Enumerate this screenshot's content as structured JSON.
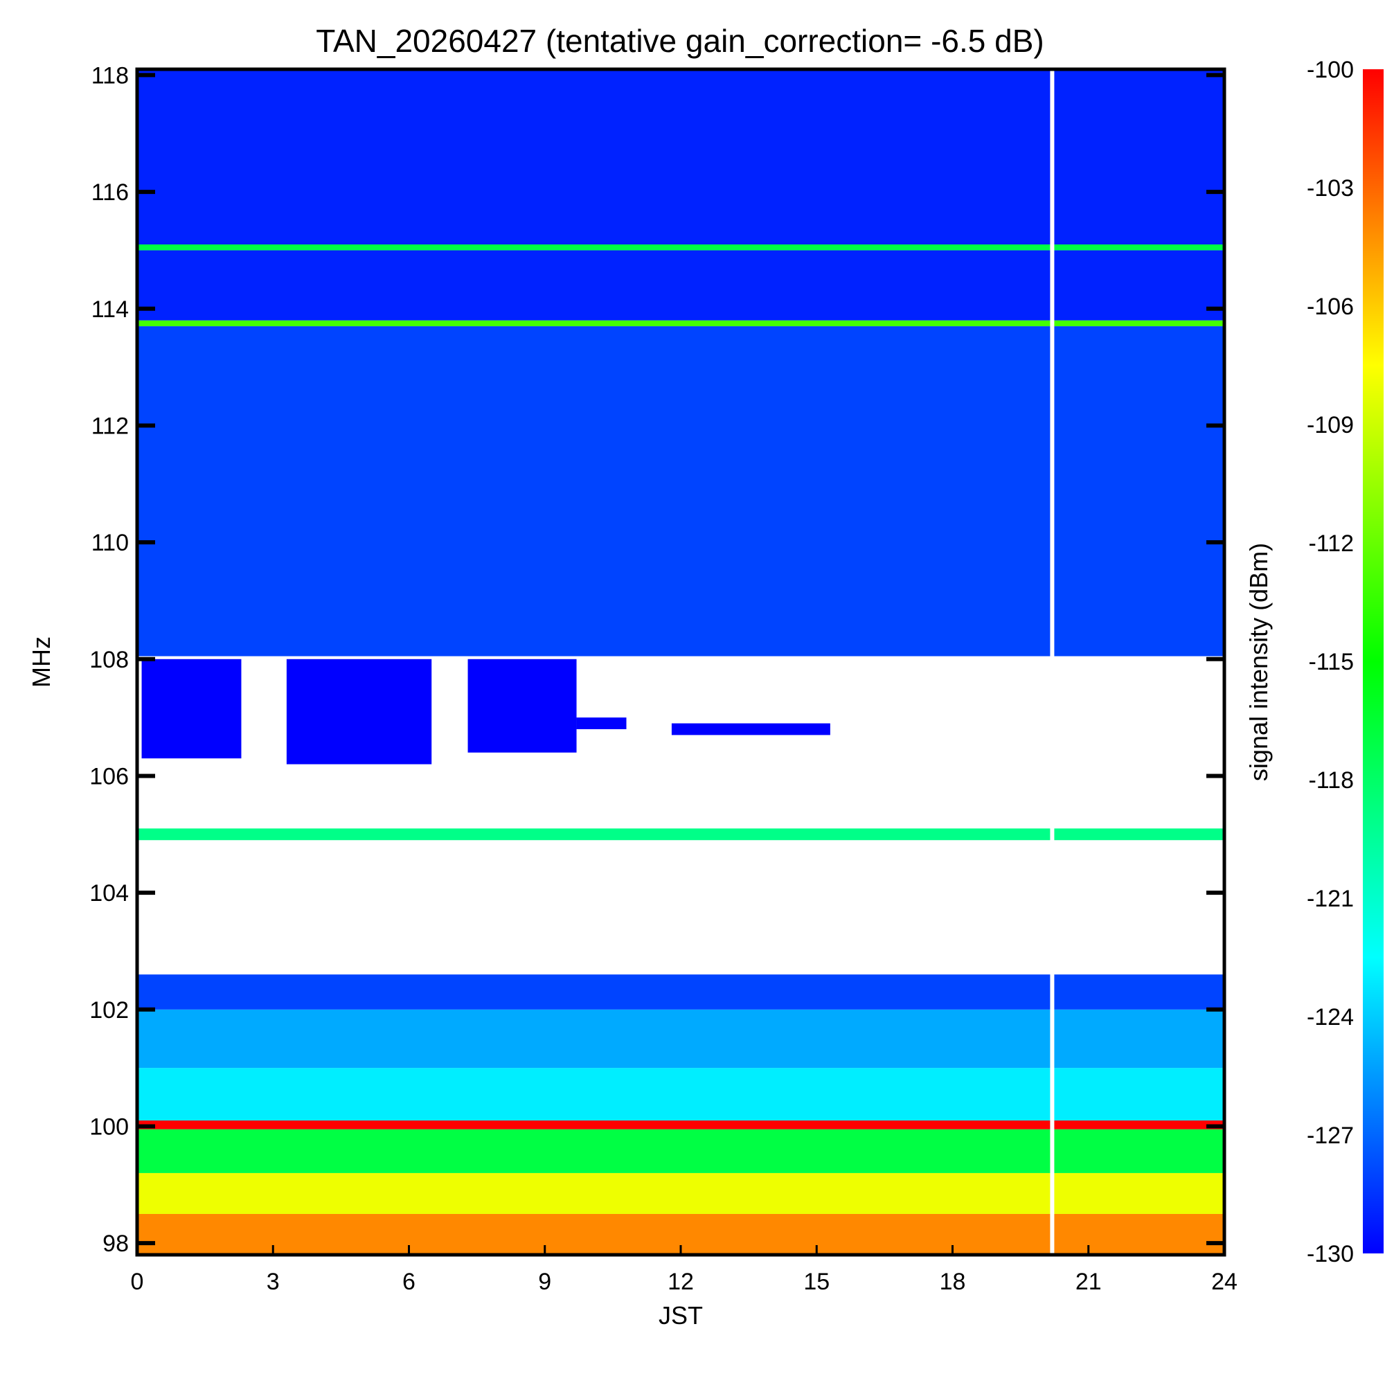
{
  "chart_data": {
    "type": "heatmap",
    "title": "TAN_20260427 (tentative gain_correction= -6.5 dB)",
    "xlabel": "JST",
    "ylabel": "MHz",
    "colorbar_label": "signal intensity (dBm)",
    "xlim": [
      0,
      24
    ],
    "ylim": [
      97.8,
      118.1
    ],
    "x_ticks": [
      "0",
      "3",
      "6",
      "9",
      "12",
      "15",
      "18",
      "21",
      "24"
    ],
    "y_ticks": [
      "98",
      "100",
      "102",
      "104",
      "106",
      "108",
      "110",
      "112",
      "114",
      "116",
      "118"
    ],
    "colorbar_ticks": [
      "-100",
      "-103",
      "-106",
      "-109",
      "-112",
      "-115",
      "-118",
      "-121",
      "-124",
      "-127",
      "-130"
    ],
    "clim": [
      -130,
      -100
    ],
    "colorscale": [
      "#0000ff",
      "#0080ff",
      "#00ffff",
      "#00ff80",
      "#00ff00",
      "#80ff00",
      "#ffff00",
      "#ff8000",
      "#ff0000"
    ],
    "data_gap_time_jst": 20.2,
    "bands": [
      {
        "f0": 97.8,
        "f1": 98.5,
        "dbm": -104
      },
      {
        "f0": 98.5,
        "f1": 99.2,
        "dbm": -108
      },
      {
        "f0": 99.2,
        "f1": 99.95,
        "dbm": -117
      },
      {
        "f0": 99.95,
        "f1": 100.1,
        "dbm": -100
      },
      {
        "f0": 100.1,
        "f1": 101.0,
        "dbm": -123
      },
      {
        "f0": 101.0,
        "f1": 102.0,
        "dbm": -125
      },
      {
        "f0": 102.0,
        "f1": 102.6,
        "dbm": -128
      },
      {
        "f0": 102.6,
        "f1": 104.9,
        "dbm": null
      },
      {
        "f0": 104.9,
        "f1": 105.1,
        "dbm": -119
      },
      {
        "f0": 105.1,
        "f1": 108.05,
        "dbm": null
      },
      {
        "f0": 108.05,
        "f1": 113.7,
        "dbm": -128
      },
      {
        "f0": 113.7,
        "f1": 113.8,
        "dbm": -113
      },
      {
        "f0": 113.8,
        "f1": 115.0,
        "dbm": -129
      },
      {
        "f0": 115.0,
        "f1": 115.1,
        "dbm": -117
      },
      {
        "f0": 115.1,
        "f1": 118.1,
        "dbm": -129
      }
    ],
    "partial_signal_regions": [
      {
        "t0": 0.1,
        "t1": 2.3,
        "f0": 106.3,
        "f1": 108.0,
        "dbm": -130
      },
      {
        "t0": 3.3,
        "t1": 6.5,
        "f0": 106.2,
        "f1": 108.0,
        "dbm": -130
      },
      {
        "t0": 7.3,
        "t1": 9.7,
        "f0": 106.4,
        "f1": 108.0,
        "dbm": -130
      },
      {
        "t0": 9.7,
        "t1": 10.8,
        "f0": 106.8,
        "f1": 107.0,
        "dbm": -130
      },
      {
        "t0": 11.8,
        "t1": 15.3,
        "f0": 106.7,
        "f1": 106.9,
        "dbm": -130
      }
    ]
  }
}
